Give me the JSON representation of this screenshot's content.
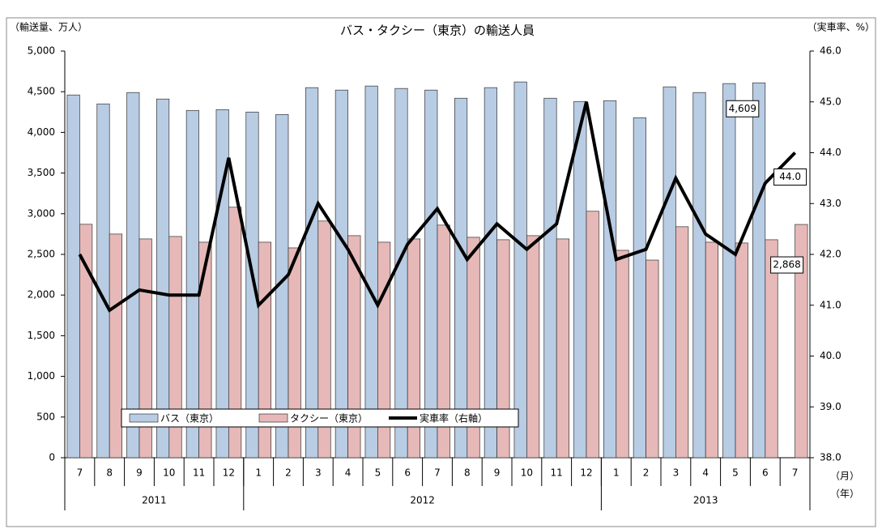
{
  "chart_data": {
    "type": "bar",
    "title": "バス・タクシー（東京）の輸送人員",
    "y_label": "（輸送量、万人）",
    "y2_label": "（実車率、%）",
    "x_label": "（月）",
    "x2_label": "（年）",
    "categories": [
      "7",
      "8",
      "9",
      "10",
      "11",
      "12",
      "1",
      "2",
      "3",
      "4",
      "5",
      "6",
      "7",
      "8",
      "9",
      "10",
      "11",
      "12",
      "1",
      "2",
      "3",
      "4",
      "5",
      "6",
      "7"
    ],
    "years": [
      {
        "label": "2011",
        "months": 6
      },
      {
        "label": "2012",
        "months": 12
      },
      {
        "label": "2013",
        "months": 7
      }
    ],
    "series": [
      {
        "name": "バス（東京）",
        "type": "bar",
        "color": "#b8cce4",
        "values": [
          4460,
          4350,
          4490,
          4410,
          4270,
          4280,
          4250,
          4220,
          4550,
          4520,
          4570,
          4540,
          4520,
          4420,
          4550,
          4620,
          4420,
          4380,
          4390,
          4180,
          4560,
          4490,
          4600,
          4609,
          null
        ],
        "value_labels": [
          null,
          null,
          null,
          null,
          null,
          null,
          null,
          null,
          null,
          null,
          null,
          null,
          null,
          null,
          null,
          null,
          null,
          null,
          null,
          null,
          null,
          null,
          null,
          "4,609",
          null
        ]
      },
      {
        "name": "タクシー（東京）",
        "type": "bar",
        "color": "#e6b9b8",
        "values": [
          2870,
          2750,
          2690,
          2720,
          2650,
          3080,
          2650,
          2580,
          2910,
          2730,
          2650,
          2690,
          2860,
          2710,
          2680,
          2730,
          2690,
          3030,
          2550,
          2430,
          2840,
          2650,
          2640,
          2680,
          2868
        ],
        "value_labels": [
          null,
          null,
          null,
          null,
          null,
          null,
          null,
          null,
          null,
          null,
          null,
          null,
          null,
          null,
          null,
          null,
          null,
          null,
          null,
          null,
          null,
          null,
          null,
          null,
          "2,868"
        ]
      },
      {
        "name": "実車率（右軸）",
        "type": "line",
        "color": "#000000",
        "axis": "y2",
        "values": [
          42.0,
          40.9,
          41.3,
          41.2,
          41.2,
          43.9,
          41.0,
          41.6,
          43.0,
          42.1,
          41.0,
          42.2,
          42.9,
          41.9,
          42.6,
          42.1,
          42.6,
          45.0,
          41.9,
          42.1,
          43.5,
          42.4,
          42.0,
          43.4,
          44.0
        ],
        "value_labels": [
          null,
          null,
          null,
          null,
          null,
          null,
          null,
          null,
          null,
          null,
          null,
          null,
          null,
          null,
          null,
          null,
          null,
          null,
          null,
          null,
          null,
          null,
          null,
          null,
          "44.0"
        ]
      }
    ],
    "ylim": [
      0,
      5000
    ],
    "yticks": [
      0,
      {
        "value": 500,
        "label": "500"
      },
      {
        "value": 1000,
        "label": "1,000"
      },
      {
        "value": 1500,
        "label": "1,500"
      },
      {
        "value": 2000,
        "label": "2,000"
      },
      {
        "value": 2500,
        "label": "2,500"
      },
      {
        "value": 3000,
        "label": "3,000"
      },
      {
        "value": 3500,
        "label": "3,500"
      },
      {
        "value": 4000,
        "label": "4,000"
      },
      {
        "value": 4500,
        "label": "4,500"
      },
      {
        "value": 5000,
        "label": "5,000"
      }
    ],
    "y2lim": [
      38,
      46
    ],
    "y2ticks": [
      {
        "value": 38,
        "label": "38.0"
      },
      {
        "value": 39,
        "label": "39.0"
      },
      {
        "value": 40,
        "label": "40.0"
      },
      {
        "value": 41,
        "label": "41.0"
      },
      {
        "value": 42,
        "label": "42.0"
      },
      {
        "value": 43,
        "label": "43.0"
      },
      {
        "value": 44,
        "label": "44.0"
      },
      {
        "value": 45,
        "label": "45.0"
      },
      {
        "value": 46,
        "label": "46.0"
      }
    ],
    "grid": false,
    "legend": "bottom-left"
  }
}
